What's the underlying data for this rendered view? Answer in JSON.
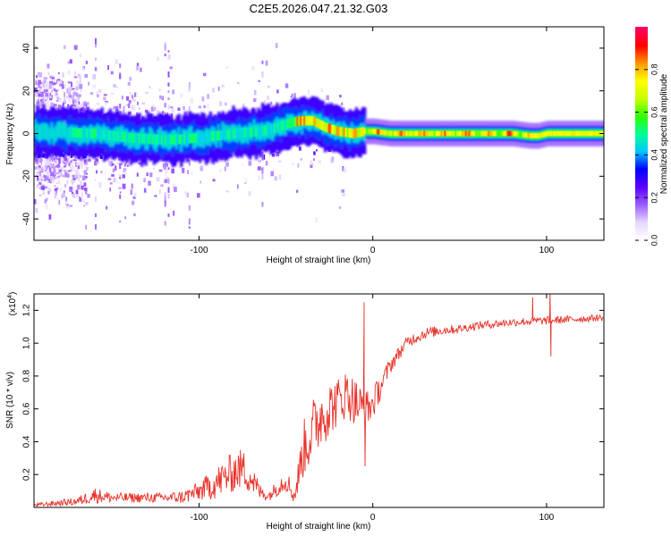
{
  "title": "C2E5.2026.047.21.32.G03",
  "colors": {
    "line": "#e8322a",
    "background": "#ffffff",
    "axis": "#000000"
  },
  "chart_data": [
    {
      "type": "heatmap",
      "name": "spectrogram",
      "xlabel": "Height of straight line (km)",
      "ylabel": "Frequency (Hz)",
      "xlim": [
        -195,
        133
      ],
      "ylim": [
        -50,
        50
      ],
      "xticks": [
        -100,
        0,
        100
      ],
      "xtick_labels": [
        "-100",
        "0",
        "100"
      ],
      "yticks": [
        -40,
        -20,
        0,
        20,
        40
      ],
      "ytick_labels": [
        "-40",
        "-20",
        "0",
        "20",
        "40"
      ],
      "colorbar": {
        "label": "Normalized spectral amplitude",
        "range": [
          0.0,
          1.0
        ],
        "ticks": [
          0.0,
          0.2,
          0.4,
          0.6,
          0.8
        ],
        "tick_labels": [
          "0.0",
          "0.2",
          "0.4",
          "0.6",
          "0.8"
        ],
        "colormap": [
          "#ffffff",
          "#e6d6ff",
          "#9a5cff",
          "#5a00ff",
          "#0000ff",
          "#00c8ff",
          "#00ff96",
          "#32ff00",
          "#c8ff00",
          "#ffff00",
          "#ff9600",
          "#ff0000",
          "#ff0064"
        ]
      },
      "ridge": {
        "x": [
          -195,
          -160,
          -140,
          -120,
          -100,
          -80,
          -65,
          -55,
          -48,
          -42,
          -35,
          -28,
          -20,
          -12,
          -5,
          0,
          10,
          20,
          40,
          60,
          80,
          90,
          95,
          100,
          133
        ],
        "freq": [
          1,
          0,
          -2,
          -3,
          -2,
          0,
          1,
          3,
          5,
          6,
          6,
          3,
          1,
          0,
          1,
          1,
          0,
          0,
          0,
          0,
          0,
          -1,
          -1,
          0,
          0
        ]
      }
    },
    {
      "type": "line",
      "name": "snr",
      "xlabel": "Height of straight line (km)",
      "ylabel": "SNR (10 * v/v)",
      "scale_label": "(x10",
      "scale_exponent": "4",
      "xlim": [
        -195,
        133
      ],
      "ylim": [
        0,
        1.3
      ],
      "xticks": [
        -100,
        0,
        100
      ],
      "xtick_labels": [
        "-100",
        "0",
        "100"
      ],
      "yticks": [
        0.2,
        0.4,
        0.6,
        0.8,
        1.0,
        1.2
      ],
      "ytick_labels": [
        "0.2",
        "0.4",
        "0.6",
        "0.8",
        "1.0",
        "1.2"
      ],
      "series": [
        {
          "name": "SNR",
          "color": "#e8322a",
          "envelope": {
            "x": [
              -195,
              -170,
              -160,
              -150,
              -120,
              -110,
              -100,
              -90,
              -80,
              -75,
              -70,
              -65,
              -60,
              -50,
              -45,
              -40,
              -35,
              -30,
              -25,
              -20,
              -15,
              -10,
              -5,
              0,
              10,
              20,
              30,
              40,
              50,
              60,
              80,
              100,
              133
            ],
            "base": [
              0.01,
              0.03,
              0.06,
              0.05,
              0.05,
              0.05,
              0.08,
              0.12,
              0.18,
              0.2,
              0.15,
              0.08,
              0.06,
              0.15,
              0.05,
              0.3,
              0.4,
              0.5,
              0.55,
              0.6,
              0.65,
              0.6,
              0.55,
              0.6,
              0.85,
              1.0,
              1.05,
              1.07,
              1.08,
              1.1,
              1.12,
              1.13,
              1.15
            ],
            "amp": [
              0.02,
              0.05,
              0.1,
              0.06,
              0.06,
              0.08,
              0.12,
              0.2,
              0.25,
              0.25,
              0.2,
              0.1,
              0.06,
              0.15,
              0.1,
              0.35,
              0.4,
              0.4,
              0.35,
              0.3,
              0.3,
              0.3,
              0.25,
              0.2,
              0.1,
              0.07,
              0.07,
              0.06,
              0.05,
              0.05,
              0.05,
              0.05,
              0.04
            ]
          },
          "spikes": [
            {
              "x": -5,
              "y": 1.25
            },
            {
              "x": -4.5,
              "y": 0.25
            },
            {
              "x": 92,
              "y": 1.28
            },
            {
              "x": 102,
              "y": 1.32
            },
            {
              "x": 102.5,
              "y": 0.92
            }
          ]
        }
      ]
    }
  ]
}
